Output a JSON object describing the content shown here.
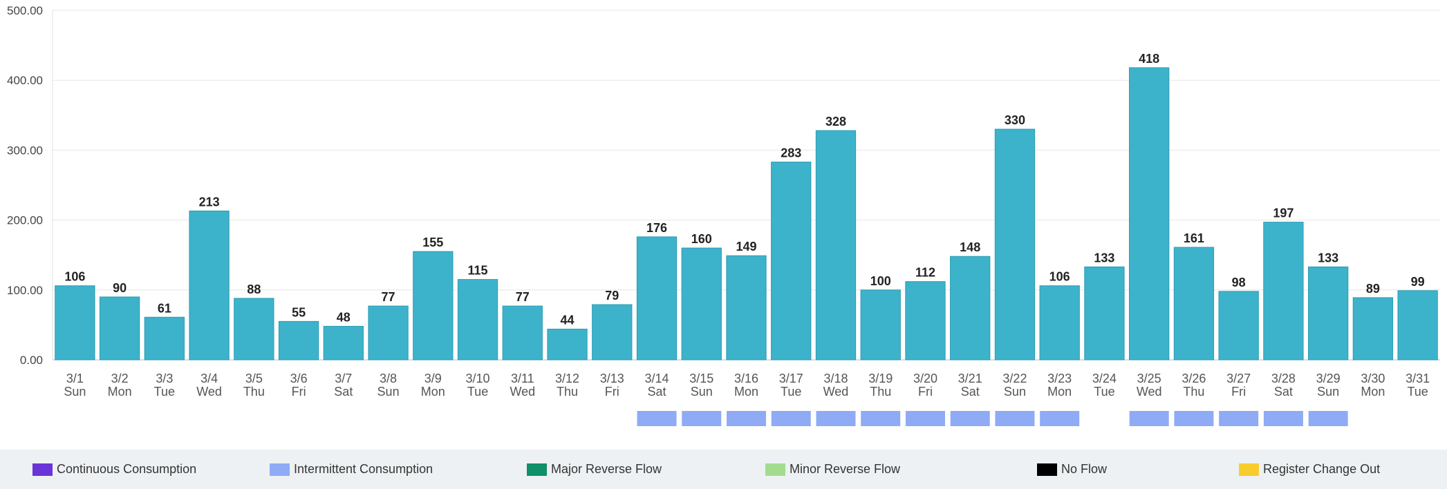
{
  "chart_data": {
    "type": "bar",
    "yticks": [
      "0.00",
      "100.00",
      "200.00",
      "300.00",
      "400.00",
      "500.00"
    ],
    "ylim": [
      0,
      500
    ],
    "grid": true,
    "dates": [
      "3/1",
      "3/2",
      "3/3",
      "3/4",
      "3/5",
      "3/6",
      "3/7",
      "3/8",
      "3/9",
      "3/10",
      "3/11",
      "3/12",
      "3/13",
      "3/14",
      "3/15",
      "3/16",
      "3/17",
      "3/18",
      "3/19",
      "3/20",
      "3/21",
      "3/22",
      "3/23",
      "3/24",
      "3/25",
      "3/26",
      "3/27",
      "3/28",
      "3/29",
      "3/30",
      "3/31"
    ],
    "weekdays": [
      "Sun",
      "Mon",
      "Tue",
      "Wed",
      "Thu",
      "Fri",
      "Sat",
      "Sun",
      "Mon",
      "Tue",
      "Wed",
      "Thu",
      "Fri",
      "Sat",
      "Sun",
      "Mon",
      "Tue",
      "Wed",
      "Thu",
      "Fri",
      "Sat",
      "Sun",
      "Mon",
      "Tue",
      "Wed",
      "Thu",
      "Fri",
      "Sat",
      "Sun",
      "Mon",
      "Tue"
    ],
    "values": [
      106,
      90,
      61,
      213,
      88,
      55,
      48,
      77,
      155,
      115,
      77,
      44,
      79,
      176,
      160,
      149,
      283,
      328,
      100,
      112,
      148,
      330,
      106,
      133,
      418,
      161,
      98,
      197,
      133,
      89,
      99
    ],
    "bar_color": "#3db3cb",
    "intermittent_days": [
      "3/14",
      "3/15",
      "3/16",
      "3/17",
      "3/18",
      "3/19",
      "3/20",
      "3/21",
      "3/22",
      "3/23",
      "3/25",
      "3/26",
      "3/27",
      "3/28",
      "3/29"
    ]
  },
  "legend": [
    {
      "label": "Continuous Consumption",
      "color": "#6a35d8"
    },
    {
      "label": "Intermittent Consumption",
      "color": "#8fabf5"
    },
    {
      "label": "Major Reverse Flow",
      "color": "#0f8f6a"
    },
    {
      "label": "Minor Reverse Flow",
      "color": "#a4dc8e"
    },
    {
      "label": "No Flow",
      "color": "#000000"
    },
    {
      "label": "Register Change Out",
      "color": "#f9cc2e"
    }
  ]
}
